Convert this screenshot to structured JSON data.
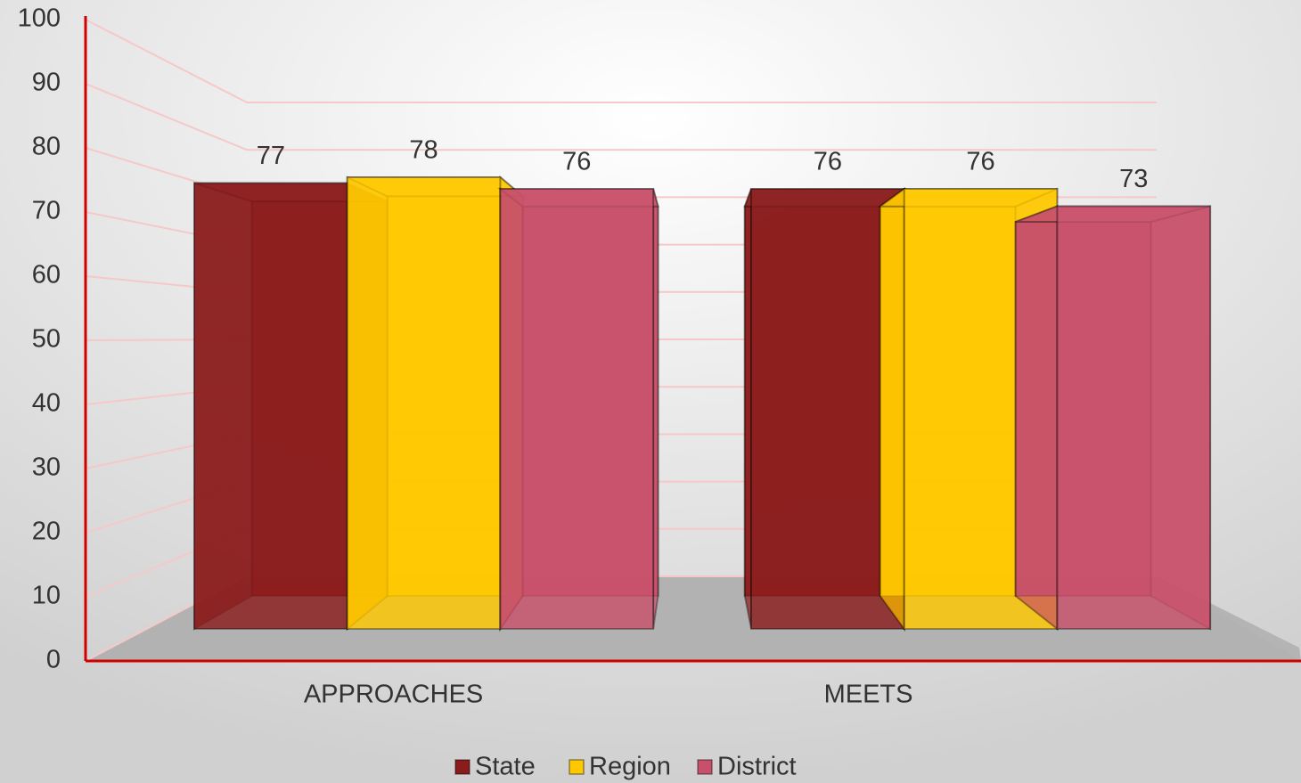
{
  "chart_data": {
    "type": "bar3d",
    "categories": [
      "APPROACHES",
      "MEETS"
    ],
    "series": [
      {
        "name": "State",
        "color": "#8B1C1C",
        "values": [
          77,
          76
        ]
      },
      {
        "name": "Region",
        "color": "#FFC800",
        "values": [
          78,
          76
        ]
      },
      {
        "name": "District",
        "color": "#C8506A",
        "values": [
          76,
          73
        ]
      }
    ],
    "ylim": [
      0,
      100
    ],
    "yticks": [
      0,
      10,
      20,
      30,
      40,
      50,
      60,
      70,
      80,
      90,
      100
    ],
    "grid": true,
    "legend": "bottom"
  }
}
